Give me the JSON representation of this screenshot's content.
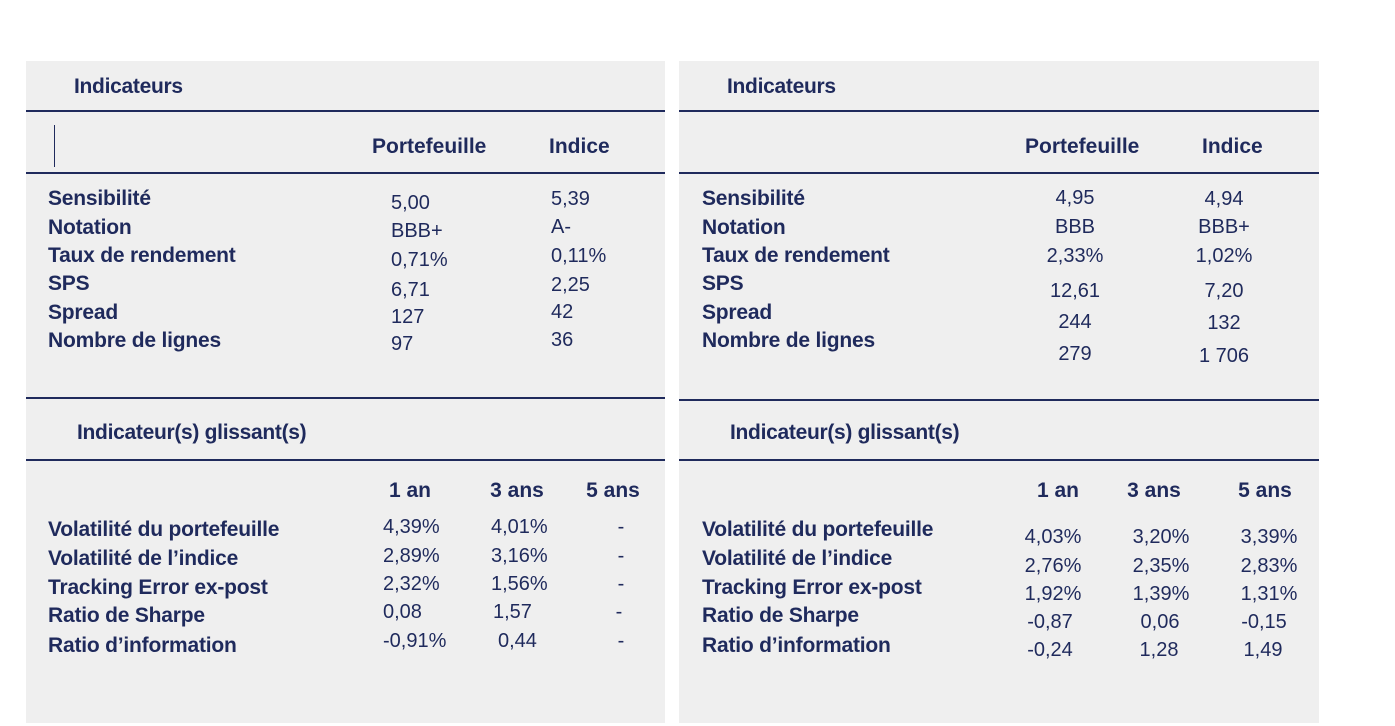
{
  "left": {
    "indicators_title": "Indicateurs",
    "col_portfolio": "Portefeuille",
    "col_index": "Indice",
    "rows": [
      {
        "label": "Sensibilité",
        "portfolio": "5,00",
        "index": "5,39"
      },
      {
        "label": "Notation",
        "portfolio": "BBB+",
        "index": "A-"
      },
      {
        "label": "Taux de rendement",
        "portfolio": "0,71%",
        "index": "0,11%"
      },
      {
        "label": "SPS",
        "portfolio": "6,71",
        "index": "2,25"
      },
      {
        "label": "Spread",
        "portfolio": "127",
        "index": "42"
      },
      {
        "label": "Nombre de lignes",
        "portfolio": "97",
        "index": "36"
      }
    ],
    "rolling_title": "Indicateur(s) glissant(s)",
    "periods": [
      "1 an",
      "3 ans",
      "5 ans"
    ],
    "rolling_rows": [
      {
        "label": "Volatilité du portefeuille",
        "values": [
          "4,39%",
          "4,01%",
          "-"
        ]
      },
      {
        "label": "Volatilité de l’indice",
        "values": [
          "2,89%",
          "3,16%",
          "-"
        ]
      },
      {
        "label": "Tracking Error ex-post",
        "values": [
          "2,32%",
          "1,56%",
          "-"
        ]
      },
      {
        "label": "Ratio de Sharpe",
        "values": [
          "0,08",
          "1,57",
          "-"
        ]
      },
      {
        "label": "Ratio d’information",
        "values": [
          "-0,91%",
          "0,44",
          "-"
        ]
      }
    ]
  },
  "right": {
    "indicators_title": "Indicateurs",
    "col_portfolio": "Portefeuille",
    "col_index": "Indice",
    "rows": [
      {
        "label": "Sensibilité",
        "portfolio": "4,95",
        "index": "4,94"
      },
      {
        "label": "Notation",
        "portfolio": "BBB",
        "index": "BBB+"
      },
      {
        "label": "Taux de rendement",
        "portfolio": "2,33%",
        "index": "1,02%"
      },
      {
        "label": "SPS",
        "portfolio": "12,61",
        "index": "7,20"
      },
      {
        "label": "Spread",
        "portfolio": "244",
        "index": "132"
      },
      {
        "label": "Nombre de lignes",
        "portfolio": "279",
        "index": "1 706"
      }
    ],
    "rolling_title": "Indicateur(s) glissant(s)",
    "periods": [
      "1 an",
      "3 ans",
      "5 ans"
    ],
    "rolling_rows": [
      {
        "label": "Volatilité du portefeuille",
        "values": [
          "4,03%",
          "3,20%",
          "3,39%"
        ]
      },
      {
        "label": "Volatilité de l’indice",
        "values": [
          "2,76%",
          "2,35%",
          "2,83%"
        ]
      },
      {
        "label": "Tracking Error ex-post",
        "values": [
          "1,92%",
          "1,39%",
          "1,31%"
        ]
      },
      {
        "label": "Ratio de Sharpe",
        "values": [
          "-0,87",
          "0,06",
          "-0,15"
        ]
      },
      {
        "label": "Ratio d’information",
        "values": [
          "-0,24",
          "1,28",
          "1,49"
        ]
      }
    ]
  }
}
